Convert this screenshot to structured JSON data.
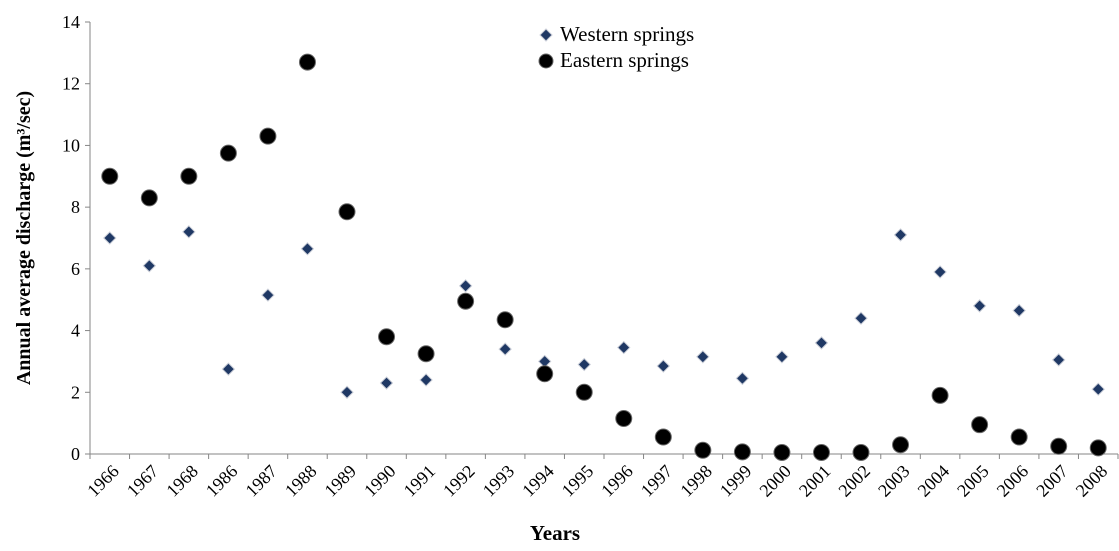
{
  "chart_data": {
    "type": "scatter",
    "x_label": "Years",
    "y_label": "Annual average discharge (m³/sec)",
    "categories": [
      "1966",
      "1967",
      "1968",
      "1986",
      "1987",
      "1988",
      "1989",
      "1990",
      "1991",
      "1992",
      "1993",
      "1994",
      "1995",
      "1996",
      "1997",
      "1998",
      "1999",
      "2000",
      "2001",
      "2002",
      "2003",
      "2004",
      "2005",
      "2006",
      "2007",
      "2008"
    ],
    "series": [
      {
        "name": "Western springs",
        "color": "#1f3864",
        "marker": "diamond",
        "values": [
          7.0,
          6.1,
          7.2,
          2.75,
          5.15,
          6.65,
          2.0,
          2.3,
          2.4,
          5.45,
          3.4,
          3.0,
          2.9,
          3.45,
          2.85,
          3.15,
          2.45,
          3.15,
          3.6,
          4.4,
          7.1,
          5.9,
          4.8,
          4.65,
          3.05,
          2.1
        ]
      },
      {
        "name": "Eastern springs",
        "color": "#000000",
        "marker": "circle",
        "values": [
          9.0,
          8.3,
          9.0,
          9.75,
          10.3,
          12.7,
          7.85,
          3.8,
          3.25,
          4.95,
          4.35,
          2.6,
          2.0,
          1.15,
          0.55,
          0.12,
          0.07,
          0.05,
          0.05,
          0.05,
          0.3,
          1.9,
          0.95,
          0.55,
          0.25,
          0.2
        ]
      }
    ],
    "ylim": [
      0,
      14
    ],
    "yticks": [
      0,
      2,
      4,
      6,
      8,
      10,
      12,
      14
    ],
    "legend": "top-center",
    "grid": false
  }
}
